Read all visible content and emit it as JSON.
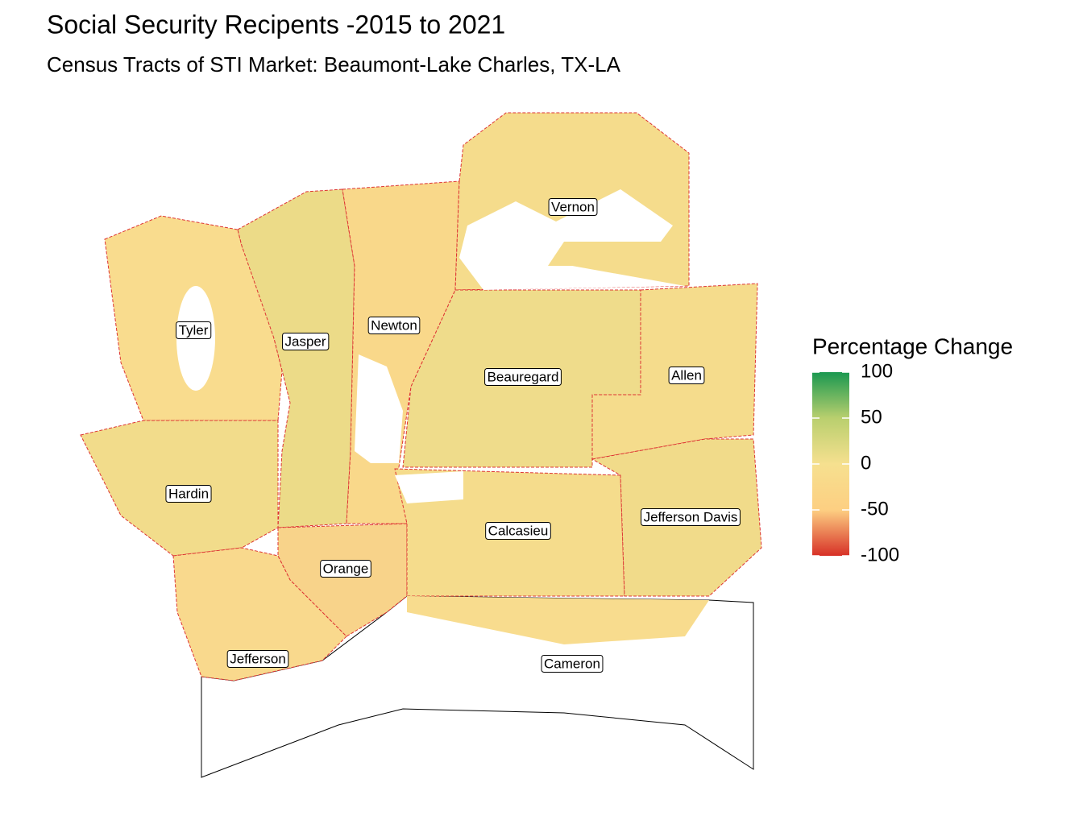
{
  "title": "Social Security Recipents -2015 to 2021",
  "subtitle": "Census Tracts of STI Market: Beaumont-Lake Charles, TX-LA",
  "legend": {
    "title": "Percentage Change",
    "lim": [
      -100,
      100
    ],
    "ticks": [
      100,
      50,
      0,
      -50,
      -100
    ],
    "colors": [
      "#d73027",
      "#fdcf82",
      "#f6e08f",
      "#b9cf6e",
      "#1a9850"
    ]
  },
  "labels": [
    "Vernon",
    "Tyler",
    "Jasper",
    "Newton",
    "Beauregard",
    "Allen",
    "Hardin",
    "Jefferson Davis",
    "Calcasieu",
    "Orange",
    "Jefferson",
    "Cameron"
  ]
}
